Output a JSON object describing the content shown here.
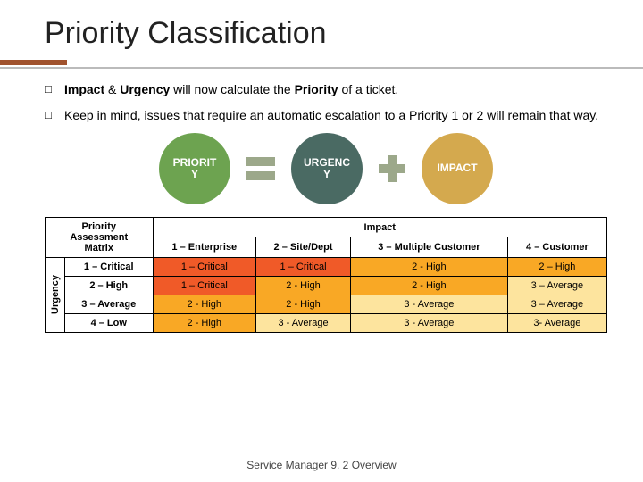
{
  "title": "Priority Classification",
  "bullets": [
    {
      "pre": "Impact",
      "mid": " & ",
      "pre2": "Urgency",
      "rest": " will now calculate the ",
      "pre3": "Priority",
      "tail": " of a ticket."
    },
    {
      "text": "Keep in mind, issues that require an automatic escalation to a Priority 1 or 2 will remain that way."
    }
  ],
  "equation": {
    "priority": {
      "label": "PRIORIT\nY",
      "color": "#6da350"
    },
    "urgency": {
      "label": "URGENC\nY",
      "color": "#4a6a63"
    },
    "impact": {
      "label": "IMPACT",
      "color": "#d4a94e"
    }
  },
  "matrix": {
    "corner_line1": "Priority",
    "corner_line2": "Assessment",
    "corner_line3": "Matrix",
    "impact_header": "Impact",
    "urgency_header": "Urgency",
    "impact_cols": [
      "1 – Enterprise",
      "2 – Site/Dept",
      "3 – Multiple Customer",
      "4 – Customer"
    ],
    "urgency_rows": [
      "1 – Critical",
      "2 – High",
      "3 – Average",
      "4 – Low"
    ],
    "cells": [
      [
        "1 – Critical",
        "1 – Critical",
        "2 - High",
        "2 – High"
      ],
      [
        "1 – Critical",
        "2 - High",
        "2 - High",
        "3 – Average"
      ],
      [
        "2 - High",
        "2 - High",
        "3 - Average",
        "3 – Average"
      ],
      [
        "2 - High",
        "3 - Average",
        "3 - Average",
        "3- Average"
      ]
    ],
    "colors": {
      "critical": "#f05a28",
      "high": "#f9a825",
      "average": "#fde49e"
    }
  },
  "footer": "Service Manager 9. 2 Overview"
}
